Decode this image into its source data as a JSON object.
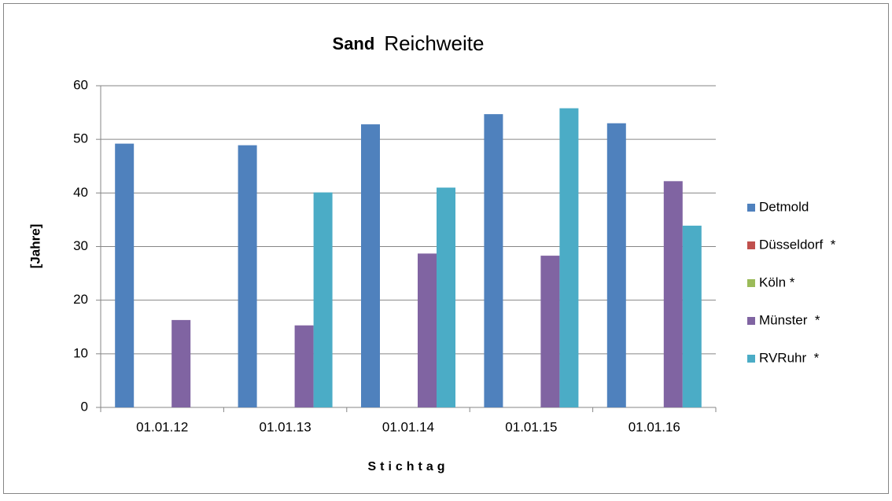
{
  "chart_data": {
    "type": "bar",
    "title": [
      "Sand",
      "Reichweite"
    ],
    "x_label": "Stichtag",
    "y_label": "[Jahre]",
    "categories": [
      "01.01.12",
      "01.01.13",
      "01.01.14",
      "01.01.15",
      "01.01.16"
    ],
    "series": [
      {
        "name": "Detmold",
        "color": "#4f81bd",
        "values": [
          49.2,
          48.9,
          52.8,
          54.7,
          53.0
        ]
      },
      {
        "name": "Düsseldorf  *",
        "color": "#c0504d",
        "values": [
          null,
          null,
          null,
          null,
          null
        ]
      },
      {
        "name": "Köln *",
        "color": "#9bbb59",
        "values": [
          null,
          null,
          null,
          null,
          null
        ]
      },
      {
        "name": "Münster  *",
        "color": "#8064a2",
        "values": [
          16.3,
          15.3,
          28.7,
          28.3,
          42.2
        ]
      },
      {
        "name": "RVRuhr  *",
        "color": "#4bacc6",
        "values": [
          null,
          40.1,
          41.0,
          55.8,
          33.9
        ]
      }
    ],
    "ylim": [
      0,
      60
    ],
    "yticks": [
      0,
      10,
      20,
      30,
      40,
      50,
      60
    ],
    "grid": true,
    "legend": "right"
  }
}
